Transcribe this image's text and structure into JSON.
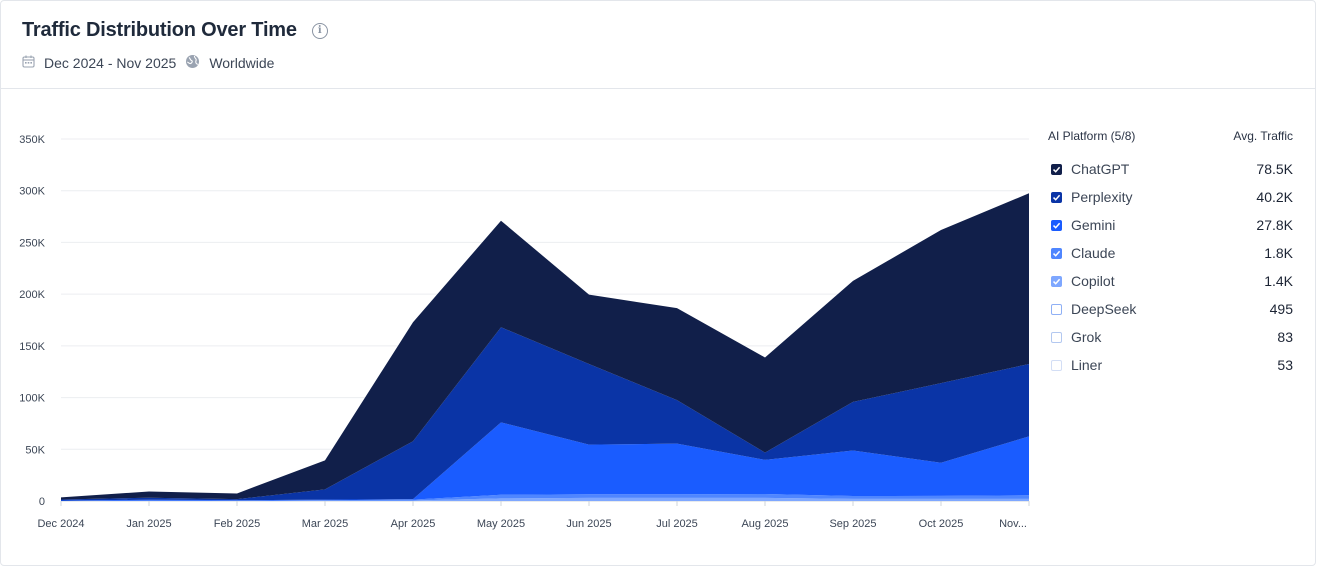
{
  "header": {
    "title": "Traffic Distribution Over Time",
    "date_range": "Dec 2024 - Nov 2025",
    "region": "Worldwide",
    "icons": [
      "info-icon",
      "calendar-icon",
      "globe-icon"
    ]
  },
  "legend": {
    "heading": "AI Platform (5/8)",
    "value_heading": "Avg. Traffic",
    "items": [
      {
        "name": "ChatGPT",
        "value": "78.5K",
        "checked": true,
        "color": "#111f4a"
      },
      {
        "name": "Perplexity",
        "value": "40.2K",
        "checked": true,
        "color": "#0a34a6"
      },
      {
        "name": "Gemini",
        "value": "27.8K",
        "checked": true,
        "color": "#1a5cff"
      },
      {
        "name": "Claude",
        "value": "1.8K",
        "checked": true,
        "color": "#4f86ff"
      },
      {
        "name": "Copilot",
        "value": "1.4K",
        "checked": true,
        "color": "#7ea7ff"
      },
      {
        "name": "DeepSeek",
        "value": "495",
        "checked": false,
        "color": "#8fb0f5"
      },
      {
        "name": "Grok",
        "value": "83",
        "checked": false,
        "color": "#b3c8f0"
      },
      {
        "name": "Liner",
        "value": "53",
        "checked": false,
        "color": "#d3def5"
      }
    ]
  },
  "chart_data": {
    "type": "area",
    "stacked": true,
    "categories": [
      "Dec 2024",
      "Jan 2025",
      "Feb 2025",
      "Mar 2025",
      "Apr 2025",
      "May 2025",
      "Jun 2025",
      "Jul 2025",
      "Aug 2025",
      "Sep 2025",
      "Oct 2025",
      "Nov..."
    ],
    "ylim": [
      0,
      350000
    ],
    "yticks": [
      0,
      50000,
      100000,
      150000,
      200000,
      250000,
      300000,
      350000
    ],
    "ytick_labels": [
      "0",
      "50K",
      "100K",
      "150K",
      "200K",
      "250K",
      "300K",
      "350K"
    ],
    "grid": true,
    "series": [
      {
        "name": "Copilot",
        "color": "#7ea7ff",
        "values": [
          0,
          200,
          100,
          300,
          500,
          2500,
          3000,
          3000,
          3000,
          2000,
          2000,
          2000
        ]
      },
      {
        "name": "Claude",
        "color": "#4f86ff",
        "values": [
          0,
          300,
          200,
          500,
          800,
          3500,
          3500,
          3500,
          3800,
          2800,
          3000,
          3500
        ]
      },
      {
        "name": "Gemini",
        "color": "#1a5cff",
        "values": [
          500,
          700,
          500,
          500,
          500,
          70000,
          48000,
          49000,
          33000,
          44000,
          32000,
          57000
        ]
      },
      {
        "name": "Perplexity",
        "color": "#0a34a6",
        "values": [
          1000,
          2000,
          1000,
          10000,
          56000,
          92000,
          78000,
          42000,
          7000,
          47000,
          77000,
          70000
        ]
      },
      {
        "name": "ChatGPT",
        "color": "#111f4a",
        "values": [
          2000,
          6000,
          5500,
          28000,
          115000,
          103000,
          67000,
          89000,
          92000,
          117000,
          148000,
          165000
        ]
      }
    ]
  }
}
